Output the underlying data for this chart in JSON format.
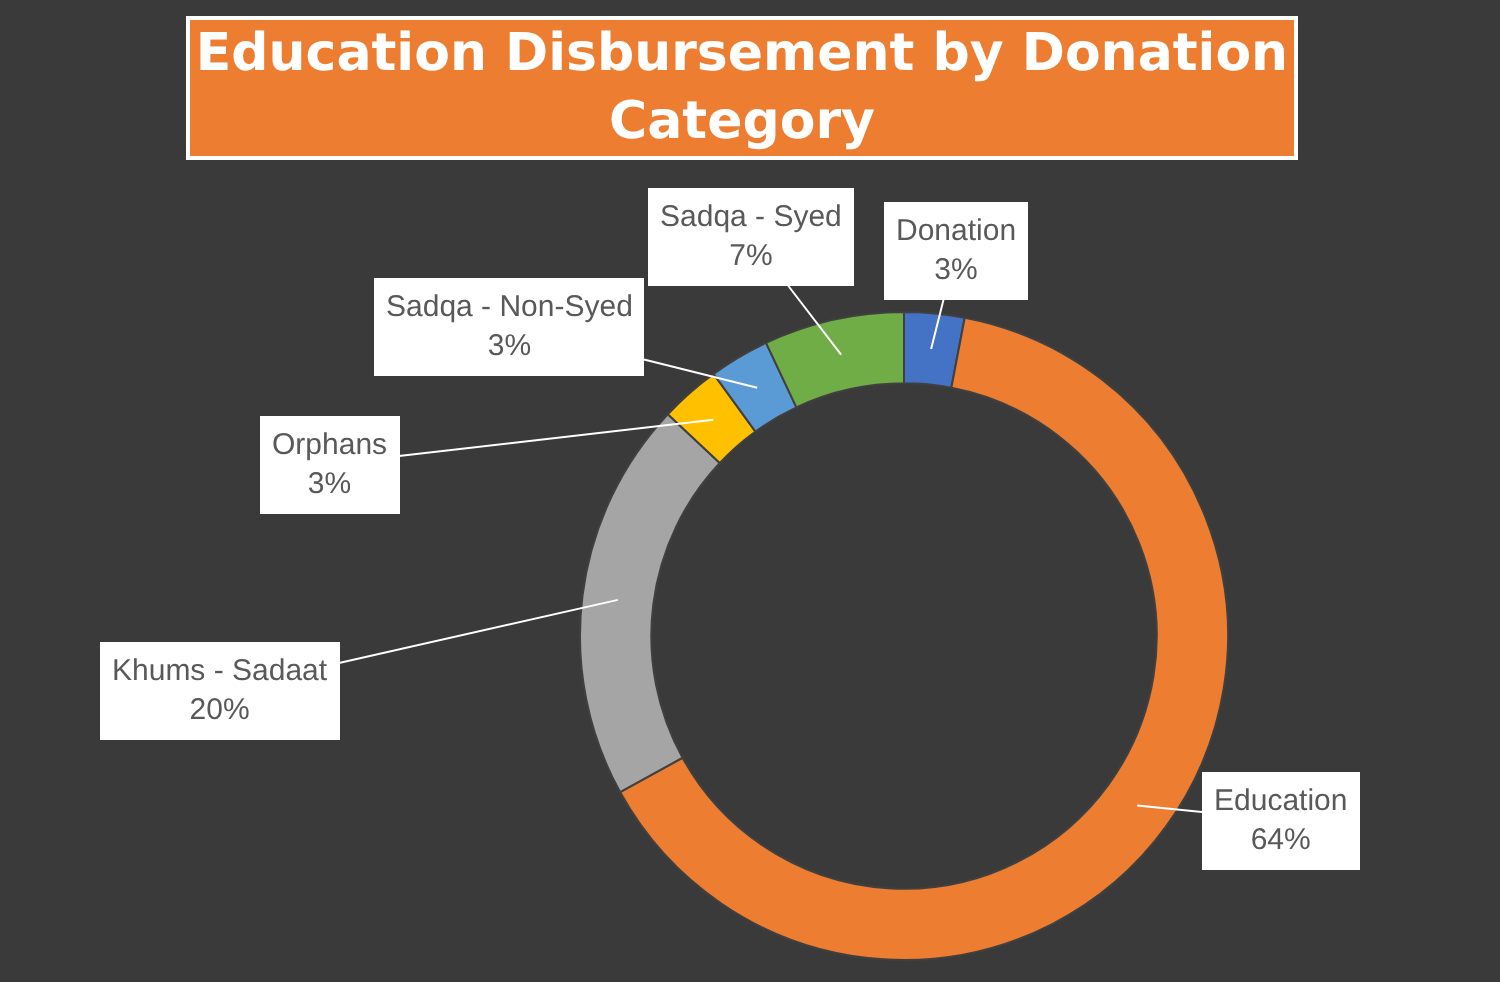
{
  "chart_data": {
    "type": "donut",
    "title": "Education Disbursement by Donation Category",
    "categories": [
      "Donation",
      "Education",
      "Khums - Sadaat",
      "Orphans",
      "Sadqa - Non-Syed",
      "Sadqa - Syed"
    ],
    "values": [
      3,
      64,
      20,
      3,
      3,
      7
    ],
    "colors": [
      "#4472c4",
      "#ed7d31",
      "#a5a5a5",
      "#ffc000",
      "#5b9bd5",
      "#70ad47"
    ],
    "value_labels": [
      "3%",
      "64%",
      "20%",
      "3%",
      "3%",
      "7%"
    ],
    "legend": false
  }
}
